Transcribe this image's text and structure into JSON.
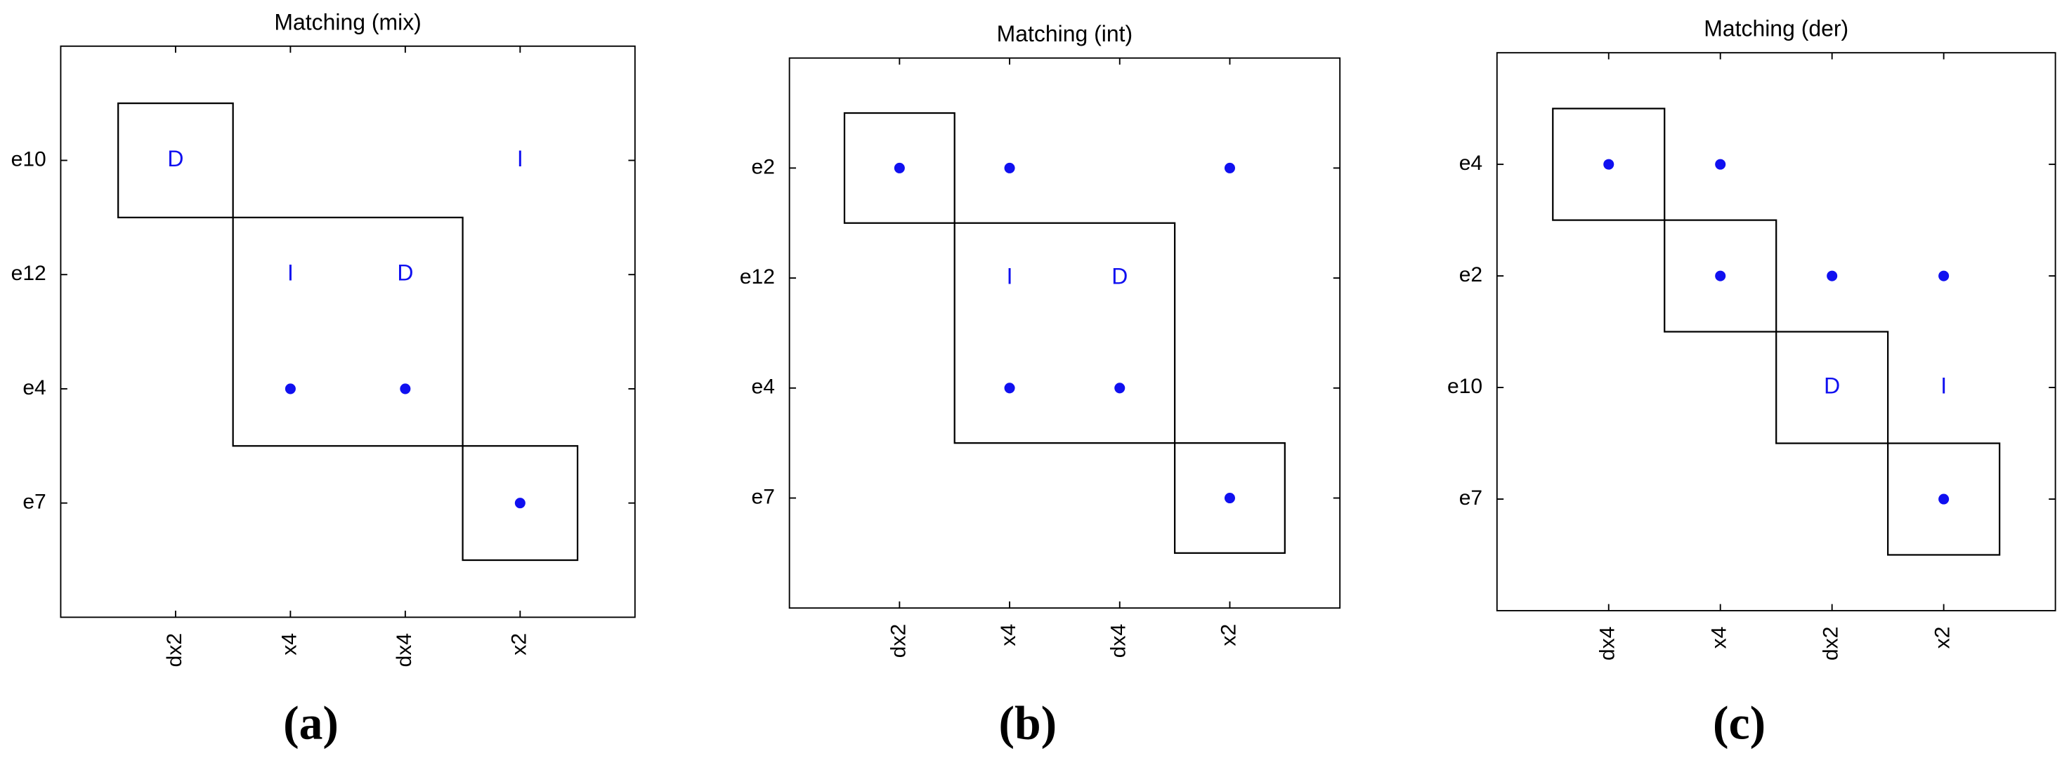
{
  "panels": [
    {
      "title": "Matching (mix)",
      "rows": [
        "e10",
        "e12",
        "e4",
        "e7"
      ],
      "cols": [
        "dx2",
        "x4",
        "dx4",
        "x2"
      ],
      "letters": [
        {
          "row": 0,
          "col": 0,
          "text": "D"
        },
        {
          "row": 0,
          "col": 3,
          "text": "I"
        },
        {
          "row": 1,
          "col": 1,
          "text": "I"
        },
        {
          "row": 1,
          "col": 2,
          "text": "D"
        }
      ],
      "dots": [
        [
          2,
          1
        ],
        [
          2,
          2
        ],
        [
          3,
          3
        ]
      ],
      "blocks": [
        [
          0,
          0,
          0,
          0
        ],
        [
          1,
          2,
          1,
          2
        ],
        [
          3,
          3,
          3,
          3
        ]
      ],
      "caption": "(a)"
    },
    {
      "title": "Matching (int)",
      "rows": [
        "e2",
        "e12",
        "e4",
        "e7"
      ],
      "cols": [
        "dx2",
        "x4",
        "dx4",
        "x2"
      ],
      "letters": [
        {
          "row": 1,
          "col": 1,
          "text": "I"
        },
        {
          "row": 1,
          "col": 2,
          "text": "D"
        }
      ],
      "dots": [
        [
          0,
          0
        ],
        [
          0,
          1
        ],
        [
          0,
          3
        ],
        [
          2,
          1
        ],
        [
          2,
          2
        ],
        [
          3,
          3
        ]
      ],
      "blocks": [
        [
          0,
          0,
          0,
          0
        ],
        [
          1,
          2,
          1,
          2
        ],
        [
          3,
          3,
          3,
          3
        ]
      ],
      "caption": "(b)"
    },
    {
      "title": "Matching (der)",
      "rows": [
        "e4",
        "e2",
        "e10",
        "e7"
      ],
      "cols": [
        "dx4",
        "x4",
        "dx2",
        "x2"
      ],
      "letters": [
        {
          "row": 2,
          "col": 2,
          "text": "D"
        },
        {
          "row": 2,
          "col": 3,
          "text": "I"
        }
      ],
      "dots": [
        [
          0,
          0
        ],
        [
          0,
          1
        ],
        [
          1,
          1
        ],
        [
          1,
          2
        ],
        [
          1,
          3
        ],
        [
          3,
          3
        ]
      ],
      "blocks": [
        [
          0,
          0,
          0,
          0
        ],
        [
          1,
          1,
          1,
          1
        ],
        [
          2,
          2,
          2,
          2
        ],
        [
          3,
          3,
          3,
          3
        ]
      ],
      "caption": "(c)"
    }
  ]
}
